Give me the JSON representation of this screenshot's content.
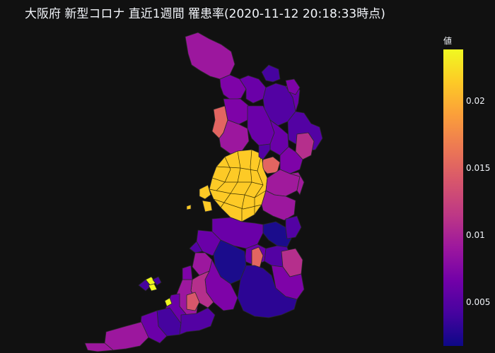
{
  "title": "大阪府 新型コロナ 直近1週間 罹患率(2020-11-12 20:18:33時点)",
  "colorbar": {
    "title": "値",
    "colorscale": [
      "#0d0887",
      "#46039f",
      "#7201a8",
      "#9c179e",
      "#bd3786",
      "#d8576b",
      "#ed7953",
      "#fb9f3a",
      "#fdca26",
      "#f0f921"
    ],
    "range": [
      0.0015,
      0.0238
    ],
    "ticks": [
      "0.005",
      "0.01",
      "0.015",
      "0.02"
    ]
  },
  "background": "#111111"
}
